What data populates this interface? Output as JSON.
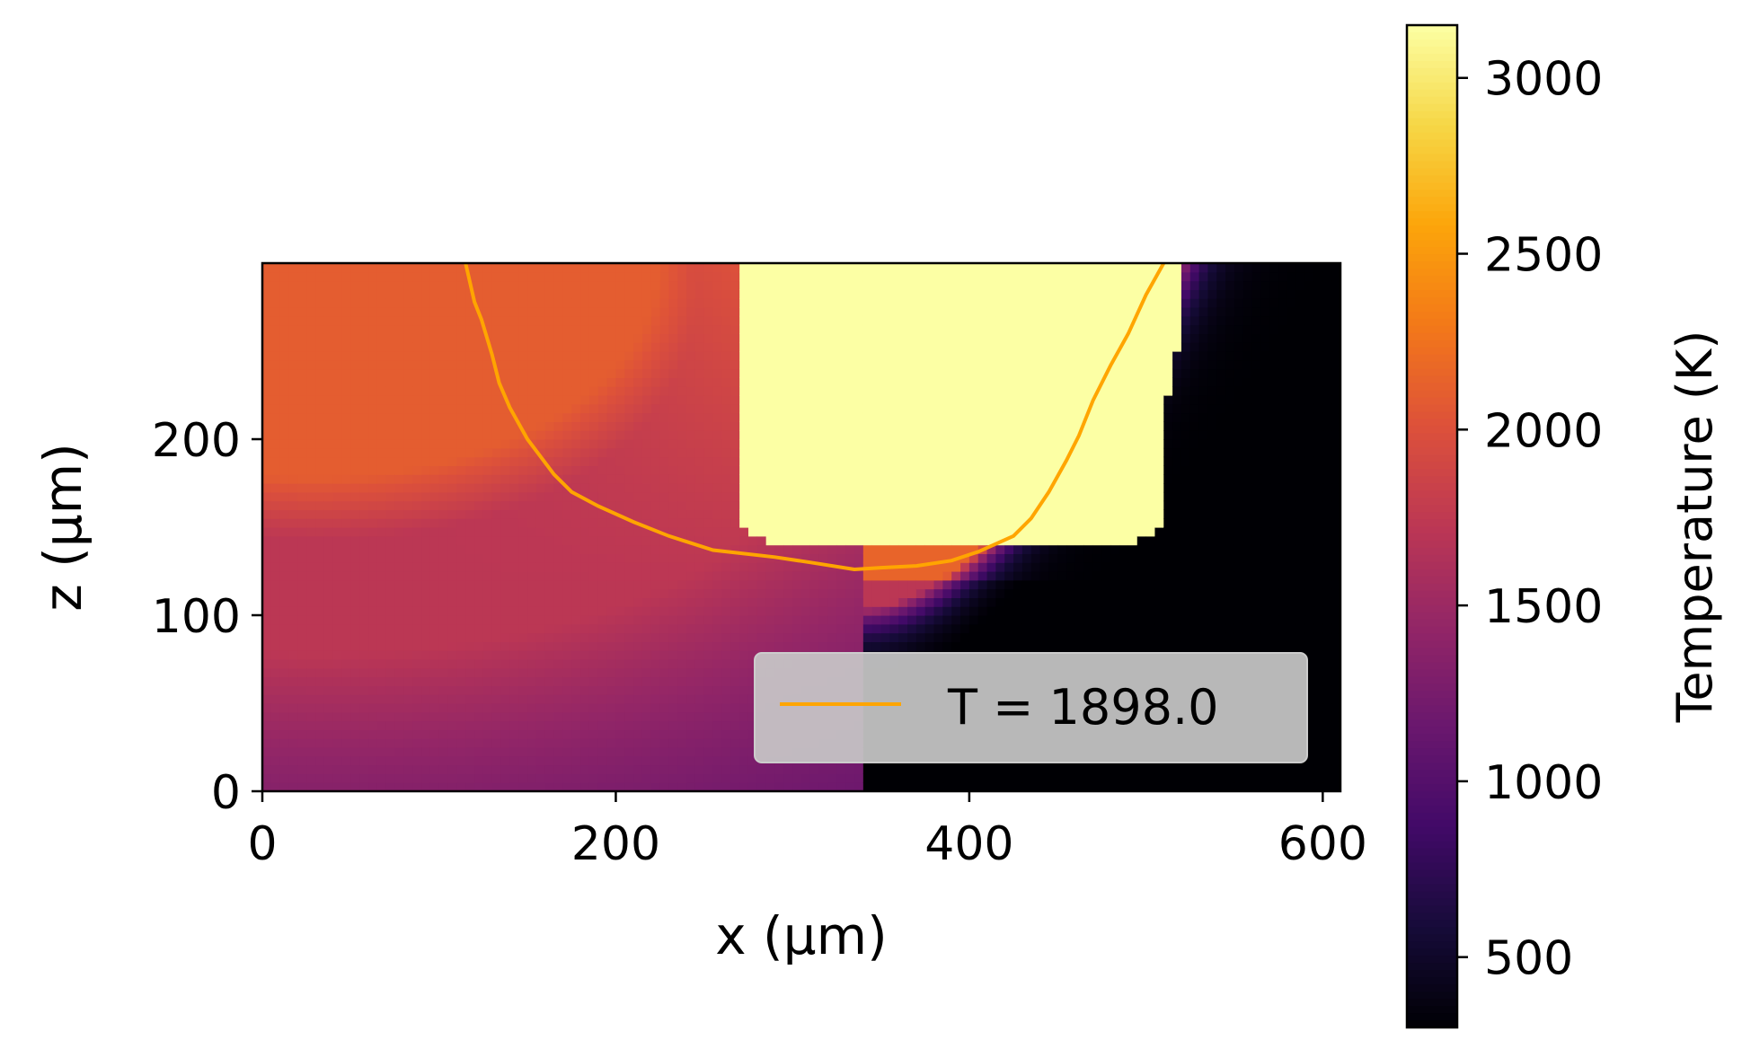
{
  "chart_data": {
    "type": "heatmap",
    "title": "",
    "xlabel": "x (μm)",
    "ylabel": "z (μm)",
    "xlim": [
      0,
      610
    ],
    "ylim": [
      0,
      300
    ],
    "xticks": [
      0,
      200,
      400,
      600
    ],
    "xtick_labels": [
      "0",
      "200",
      "400",
      "600"
    ],
    "yticks": [
      0,
      100,
      200
    ],
    "ytick_labels": [
      "0",
      "100",
      "200"
    ],
    "colormap": "inferno",
    "colorbar": {
      "label": "Temperature (K)",
      "range": [
        300,
        3150
      ],
      "ticks": [
        500,
        1000,
        1500,
        2000,
        2500,
        3000
      ],
      "tick_labels": [
        "500",
        "1000",
        "1500",
        "2000",
        "2500",
        "3000"
      ]
    },
    "field": {
      "description_of_regions": "",
      "cold_ambient_K": 300,
      "max_K": 3150
    },
    "contour": {
      "level": 1898.0,
      "color": "#ffa500",
      "points": [
        [
          115,
          300
        ],
        [
          120,
          278
        ],
        [
          124,
          268
        ],
        [
          130,
          248
        ],
        [
          134,
          232
        ],
        [
          140,
          218
        ],
        [
          150,
          200
        ],
        [
          165,
          180
        ],
        [
          175,
          170
        ],
        [
          190,
          162
        ],
        [
          210,
          153
        ],
        [
          230,
          145
        ],
        [
          255,
          137
        ],
        [
          290,
          133
        ],
        [
          310,
          130
        ],
        [
          335,
          126
        ],
        [
          350,
          127
        ],
        [
          370,
          128
        ],
        [
          390,
          131
        ],
        [
          405,
          136
        ],
        [
          425,
          145
        ],
        [
          435,
          155
        ],
        [
          445,
          170
        ],
        [
          455,
          188
        ],
        [
          462,
          202
        ],
        [
          470,
          222
        ],
        [
          480,
          242
        ],
        [
          490,
          260
        ],
        [
          500,
          282
        ],
        [
          510,
          300
        ]
      ]
    },
    "legend": {
      "placement": "lower right",
      "entries": [
        {
          "label": "T = 1898.0",
          "color": "#ffa500"
        }
      ]
    },
    "grid": false
  }
}
